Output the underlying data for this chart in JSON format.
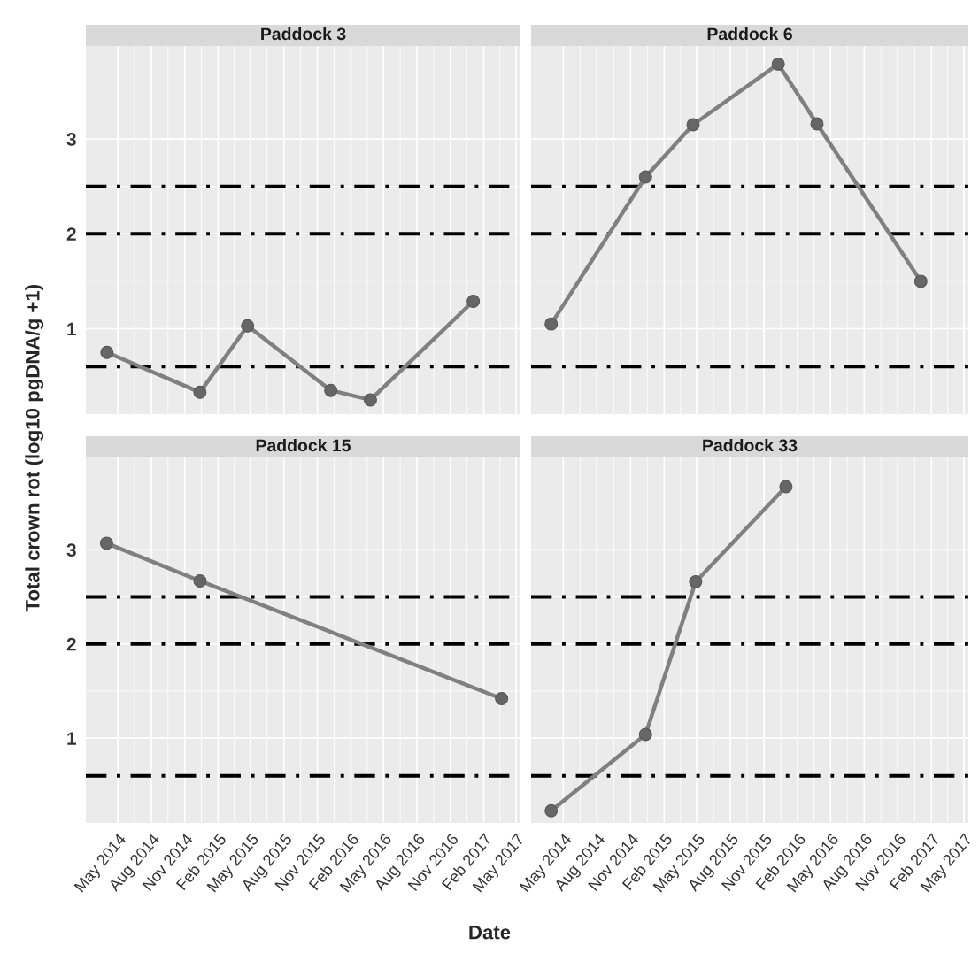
{
  "chart_data": [
    {
      "type": "line",
      "title": "Paddock 3",
      "ylabel": "Total crown rot (log10 pgDNA/g +1)",
      "tick_labels": "y",
      "marker": "circle",
      "grid": true,
      "x": [
        "2014-04-01",
        "2014-12-13",
        "2015-04-23",
        "2015-12-08",
        "2016-03-26",
        "2017-01-03"
      ],
      "series": [
        {
          "color": "#808080",
          "values": [
            0.75,
            0.33,
            1.03,
            0.35,
            0.25,
            1.29
          ]
        }
      ],
      "xlim": [
        "2014-02-02",
        "2017-05-13"
      ],
      "ylim": [
        0.1,
        3.98
      ],
      "yticks": [
        1,
        2,
        3
      ],
      "xticks": [
        {
          "value": "2014-05-01",
          "label": null
        },
        {
          "value": "2014-08-01",
          "label": null
        },
        {
          "value": "2014-11-01",
          "label": null
        },
        {
          "value": "2015-02-01",
          "label": null
        },
        {
          "value": "2015-05-01",
          "label": null
        },
        {
          "value": "2015-08-01",
          "label": null
        },
        {
          "value": "2015-11-01",
          "label": null
        },
        {
          "value": "2016-02-01",
          "label": null
        },
        {
          "value": "2016-05-01",
          "label": null
        },
        {
          "value": "2016-08-01",
          "label": null
        },
        {
          "value": "2016-11-01",
          "label": null
        },
        {
          "value": "2017-02-01",
          "label": null
        },
        {
          "value": "2017-05-01",
          "label": null
        }
      ],
      "ref_lines": [
        {
          "axis": "y",
          "value": 0.6,
          "color": "#000000",
          "line_style": "dashdot"
        },
        {
          "axis": "y",
          "value": 2,
          "color": "#000000",
          "line_style": "dashdot"
        },
        {
          "axis": "y",
          "value": 2.5,
          "color": "#000000",
          "line_style": "dashdot"
        }
      ]
    },
    {
      "type": "line",
      "title": "Paddock 6",
      "tick_labels": false,
      "marker": "circle",
      "grid": true,
      "x": [
        "2014-03-29",
        "2014-12-12",
        "2015-04-21",
        "2015-12-10",
        "2016-03-25",
        "2017-01-03"
      ],
      "series": [
        {
          "color": "#808080",
          "values": [
            1.05,
            2.6,
            3.15,
            3.79,
            3.16,
            1.5
          ]
        }
      ],
      "xlim": [
        "2014-02-02",
        "2017-05-13"
      ],
      "ylim": [
        0.1,
        3.98
      ],
      "yticks": [
        1,
        2,
        3
      ],
      "xticks": [
        {
          "value": "2014-05-01",
          "label": null
        },
        {
          "value": "2014-08-01",
          "label": null
        },
        {
          "value": "2014-11-01",
          "label": null
        },
        {
          "value": "2015-02-01",
          "label": null
        },
        {
          "value": "2015-05-01",
          "label": null
        },
        {
          "value": "2015-08-01",
          "label": null
        },
        {
          "value": "2015-11-01",
          "label": null
        },
        {
          "value": "2016-02-01",
          "label": null
        },
        {
          "value": "2016-05-01",
          "label": null
        },
        {
          "value": "2016-08-01",
          "label": null
        },
        {
          "value": "2016-11-01",
          "label": null
        },
        {
          "value": "2017-02-01",
          "label": null
        },
        {
          "value": "2017-05-01",
          "label": null
        }
      ],
      "ref_lines": [
        {
          "axis": "y",
          "value": 0.6,
          "color": "#000000",
          "line_style": "dashdot"
        },
        {
          "axis": "y",
          "value": 2,
          "color": "#000000",
          "line_style": "dashdot"
        },
        {
          "axis": "y",
          "value": 2.5,
          "color": "#000000",
          "line_style": "dashdot"
        }
      ]
    },
    {
      "type": "line",
      "title": "Paddock 15",
      "xlabel": "Date",
      "marker": "circle",
      "grid": true,
      "x": [
        "2014-03-31",
        "2014-12-13",
        "2017-03-22"
      ],
      "series": [
        {
          "color": "#808080",
          "values": [
            3.07,
            2.67,
            1.42
          ]
        }
      ],
      "xlim": [
        "2014-02-02",
        "2017-05-13"
      ],
      "ylim": [
        0.1,
        3.98
      ],
      "yticks": [
        1,
        2,
        3
      ],
      "xticks": [
        {
          "value": "2014-05-01",
          "label": "May 2014"
        },
        {
          "value": "2014-08-01",
          "label": "Aug 2014"
        },
        {
          "value": "2014-11-01",
          "label": "Nov 2014"
        },
        {
          "value": "2015-02-01",
          "label": "Feb 2015"
        },
        {
          "value": "2015-05-01",
          "label": "May 2015"
        },
        {
          "value": "2015-08-01",
          "label": "Aug 2015"
        },
        {
          "value": "2015-11-01",
          "label": "Nov 2015"
        },
        {
          "value": "2016-02-01",
          "label": "Feb 2016"
        },
        {
          "value": "2016-05-01",
          "label": "May 2016"
        },
        {
          "value": "2016-08-01",
          "label": "Aug 2016"
        },
        {
          "value": "2016-11-01",
          "label": "Nov 2016"
        },
        {
          "value": "2017-02-01",
          "label": "Feb 2017"
        },
        {
          "value": "2017-05-01",
          "label": "May 2017"
        }
      ],
      "ref_lines": [
        {
          "axis": "y",
          "value": 0.6,
          "color": "#000000",
          "line_style": "dashdot"
        },
        {
          "axis": "y",
          "value": 2,
          "color": "#000000",
          "line_style": "dashdot"
        },
        {
          "axis": "y",
          "value": 2.5,
          "color": "#000000",
          "line_style": "dashdot"
        }
      ]
    },
    {
      "type": "line",
      "title": "Paddock 33",
      "tick_labels": "x",
      "marker": "circle",
      "grid": true,
      "x": [
        "2014-03-29",
        "2014-12-12",
        "2015-04-28",
        "2015-12-31"
      ],
      "series": [
        {
          "color": "#808080",
          "values": [
            0.23,
            1.04,
            2.66,
            3.67
          ]
        }
      ],
      "xlim": [
        "2014-02-02",
        "2017-05-13"
      ],
      "ylim": [
        0.1,
        3.98
      ],
      "yticks": [
        1,
        2,
        3
      ],
      "xticks": [
        {
          "value": "2014-05-01",
          "label": "May 2014"
        },
        {
          "value": "2014-08-01",
          "label": "Aug 2014"
        },
        {
          "value": "2014-11-01",
          "label": "Nov 2014"
        },
        {
          "value": "2015-02-01",
          "label": "Feb 2015"
        },
        {
          "value": "2015-05-01",
          "label": "May 2015"
        },
        {
          "value": "2015-08-01",
          "label": "Aug 2015"
        },
        {
          "value": "2015-11-01",
          "label": "Nov 2015"
        },
        {
          "value": "2016-02-01",
          "label": "Feb 2016"
        },
        {
          "value": "2016-05-01",
          "label": "May 2016"
        },
        {
          "value": "2016-08-01",
          "label": "Aug 2016"
        },
        {
          "value": "2016-11-01",
          "label": "Nov 2016"
        },
        {
          "value": "2017-02-01",
          "label": "Feb 2017"
        },
        {
          "value": "2017-05-01",
          "label": "May 2017"
        }
      ],
      "ref_lines": [
        {
          "axis": "y",
          "value": 0.6,
          "color": "#000000",
          "line_style": "dashdot"
        },
        {
          "axis": "y",
          "value": 2,
          "color": "#000000",
          "line_style": "dashdot"
        },
        {
          "axis": "y",
          "value": 2.5,
          "color": "#000000",
          "line_style": "dashdot"
        }
      ]
    }
  ]
}
